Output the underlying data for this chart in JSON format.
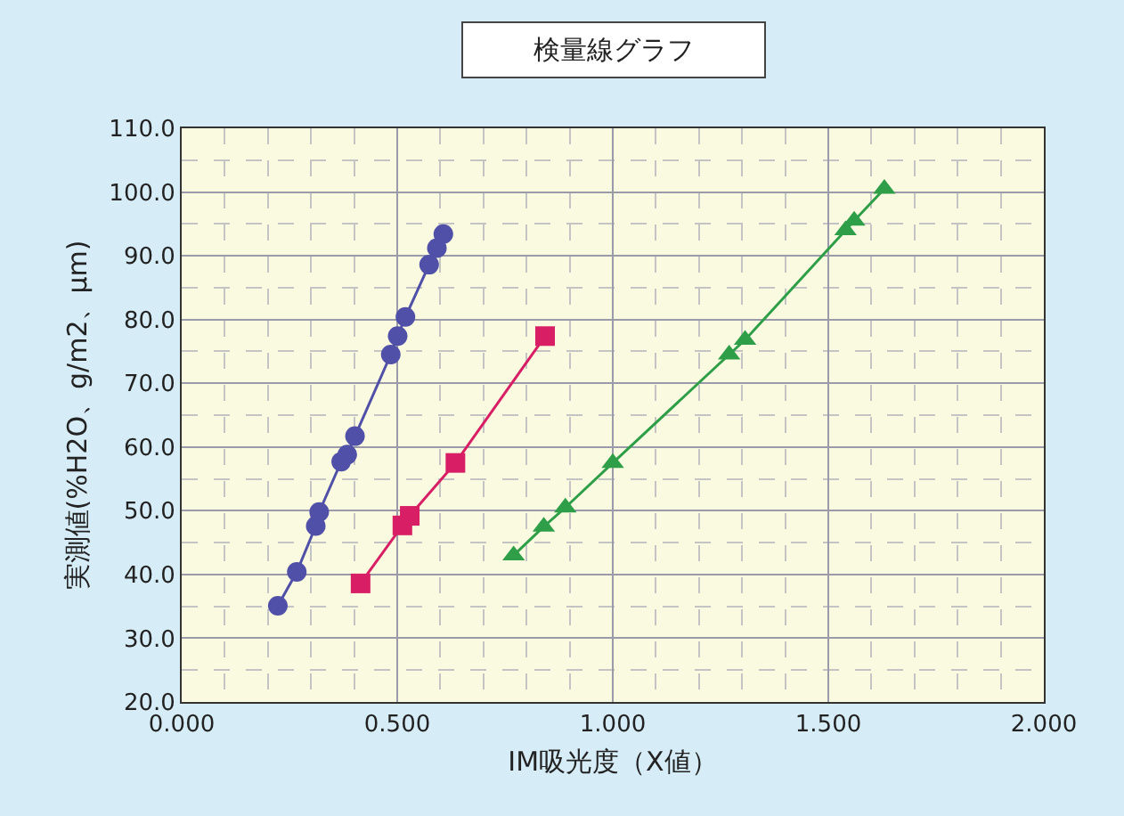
{
  "chart_data": {
    "type": "line",
    "title": "検量線グラフ",
    "xlabel": "IM吸光度（X値）",
    "ylabel": "実測値(%H2O、g/m2、μm)",
    "xlim": [
      0,
      2
    ],
    "xticks": [
      {
        "value": 0,
        "label": "0.000"
      },
      {
        "value": 0.5,
        "label": "0.500"
      },
      {
        "value": 1,
        "label": "1.000"
      },
      {
        "value": 1.5,
        "label": "1.500"
      },
      {
        "value": 2,
        "label": "2.000"
      }
    ],
    "ylim": [
      20,
      110
    ],
    "yticks": [
      {
        "value": 20,
        "label": "20.0"
      },
      {
        "value": 30,
        "label": "30.0"
      },
      {
        "value": 40,
        "label": "40.0"
      },
      {
        "value": 50,
        "label": "50.0"
      },
      {
        "value": 60,
        "label": "60.0"
      },
      {
        "value": 70,
        "label": "70.0"
      },
      {
        "value": 80,
        "label": "80.0"
      },
      {
        "value": 90,
        "label": "90.0"
      },
      {
        "value": 100,
        "label": "100.0"
      },
      {
        "value": 110,
        "label": "110.0"
      }
    ],
    "grid": true,
    "line_style": "solid",
    "series": [
      {
        "color": "#5050a8",
        "marker": "circle",
        "x": [
          0.223,
          0.267,
          0.311,
          0.319,
          0.37,
          0.384,
          0.402,
          0.485,
          0.501,
          0.519,
          0.574,
          0.592,
          0.607
        ],
        "values": [
          35.1,
          40.4,
          47.6,
          49.8,
          57.7,
          58.8,
          61.7,
          74.5,
          77.4,
          80.4,
          88.6,
          91.2,
          93.4
        ]
      },
      {
        "color": "#d81e64",
        "marker": "square",
        "x": [
          0.415,
          0.512,
          0.529,
          0.635,
          0.843
        ],
        "values": [
          38.6,
          47.7,
          49.2,
          57.5,
          77.4
        ]
      },
      {
        "color": "#2e9e48",
        "marker": "triangle",
        "x": [
          0.77,
          0.84,
          0.89,
          1.0,
          1.27,
          1.307,
          1.54,
          1.56,
          1.63
        ],
        "values": [
          43,
          47.5,
          50.5,
          57.5,
          74.5,
          76.8,
          94,
          95.5,
          100.5
        ]
      }
    ]
  }
}
